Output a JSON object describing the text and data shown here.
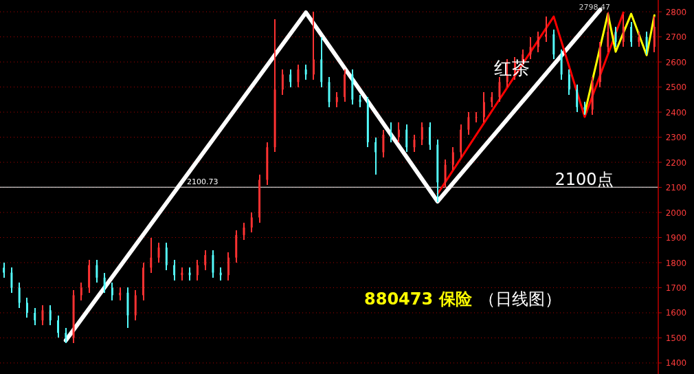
{
  "chart_data": {
    "type": "candlestick",
    "title": "880473 保险",
    "subtitle": "（日线图）",
    "categories": [
      null,
      null,
      null,
      null,
      null,
      null,
      null,
      null,
      null,
      null,
      null,
      null,
      null,
      null,
      null,
      null,
      null,
      null,
      null,
      null,
      null,
      null,
      null,
      null,
      null,
      null,
      null,
      null,
      null,
      null,
      null,
      null,
      null,
      null,
      null,
      null,
      null,
      null,
      null,
      null,
      null,
      null,
      null,
      null,
      null,
      null,
      null,
      null,
      null,
      null,
      null,
      null,
      null,
      null,
      null,
      null,
      null,
      null,
      null,
      null,
      null,
      null,
      null,
      null,
      null,
      null,
      null,
      null,
      null,
      null,
      null,
      null,
      null,
      null,
      null,
      null,
      null,
      null,
      null,
      null,
      null,
      null,
      null,
      null,
      null
    ],
    "ylim": [
      1356,
      2847
    ],
    "yticks": [
      1400,
      1500,
      1600,
      1700,
      1800,
      1900,
      2000,
      2100,
      2200,
      2300,
      2400,
      2500,
      2600,
      2700,
      2800
    ],
    "tick_labels": "y",
    "grid": "y",
    "ohlc": [
      [
        1780,
        1800,
        1740,
        1760
      ],
      [
        1760,
        1780,
        1680,
        1700
      ],
      [
        1700,
        1720,
        1620,
        1640
      ],
      [
        1640,
        1660,
        1580,
        1600
      ],
      [
        1600,
        1620,
        1550,
        1570
      ],
      [
        1570,
        1630,
        1550,
        1610
      ],
      [
        1610,
        1630,
        1550,
        1570
      ],
      [
        1570,
        1590,
        1500,
        1520
      ],
      [
        1520,
        1540,
        1480,
        1500
      ],
      [
        1500,
        1690,
        1480,
        1670
      ],
      [
        1670,
        1720,
        1650,
        1700
      ],
      [
        1700,
        1810,
        1680,
        1790
      ],
      [
        1790,
        1810,
        1720,
        1740
      ],
      [
        1740,
        1760,
        1680,
        1700
      ],
      [
        1700,
        1720,
        1650,
        1670
      ],
      [
        1670,
        1700,
        1650,
        1680
      ],
      [
        1680,
        1700,
        1540,
        1590
      ],
      [
        1590,
        1690,
        1570,
        1670
      ],
      [
        1670,
        1800,
        1650,
        1780
      ],
      [
        1780,
        1900,
        1760,
        1820
      ],
      [
        1820,
        1880,
        1800,
        1860
      ],
      [
        1860,
        1880,
        1770,
        1790
      ],
      [
        1790,
        1810,
        1730,
        1750
      ],
      [
        1750,
        1780,
        1730,
        1760
      ],
      [
        1760,
        1780,
        1730,
        1750
      ],
      [
        1750,
        1810,
        1730,
        1790
      ],
      [
        1790,
        1850,
        1770,
        1830
      ],
      [
        1830,
        1850,
        1740,
        1760
      ],
      [
        1760,
        1780,
        1730,
        1750
      ],
      [
        1750,
        1840,
        1730,
        1820
      ],
      [
        1820,
        1930,
        1800,
        1910
      ],
      [
        1910,
        1960,
        1890,
        1940
      ],
      [
        1940,
        2000,
        1920,
        1980
      ],
      [
        1980,
        2150,
        1960,
        2130
      ],
      [
        2130,
        2280,
        2110,
        2260
      ],
      [
        2260,
        2770,
        2240,
        2490
      ],
      [
        2490,
        2570,
        2470,
        2550
      ],
      [
        2550,
        2570,
        2500,
        2520
      ],
      [
        2520,
        2590,
        2500,
        2570
      ],
      [
        2570,
        2590,
        2530,
        2550
      ],
      [
        2550,
        2800,
        2530,
        2610
      ],
      [
        2610,
        2700,
        2500,
        2520
      ],
      [
        2520,
        2540,
        2420,
        2440
      ],
      [
        2440,
        2480,
        2420,
        2460
      ],
      [
        2460,
        2570,
        2440,
        2550
      ],
      [
        2550,
        2570,
        2430,
        2450
      ],
      [
        2450,
        2470,
        2420,
        2440
      ],
      [
        2440,
        2460,
        2260,
        2280
      ],
      [
        2280,
        2300,
        2150,
        2240
      ],
      [
        2240,
        2330,
        2220,
        2310
      ],
      [
        2310,
        2360,
        2280,
        2300
      ],
      [
        2300,
        2360,
        2280,
        2330
      ],
      [
        2330,
        2350,
        2240,
        2260
      ],
      [
        2260,
        2310,
        2240,
        2290
      ],
      [
        2290,
        2360,
        2270,
        2340
      ],
      [
        2340,
        2360,
        2250,
        2270
      ],
      [
        2270,
        2290,
        2040,
        2120
      ],
      [
        2120,
        2210,
        2100,
        2190
      ],
      [
        2190,
        2260,
        2170,
        2240
      ],
      [
        2240,
        2350,
        2220,
        2330
      ],
      [
        2330,
        2400,
        2310,
        2380
      ],
      [
        2380,
        2400,
        2360,
        2380
      ],
      [
        2380,
        2480,
        2360,
        2440
      ],
      [
        2440,
        2480,
        2420,
        2460
      ],
      [
        2460,
        2540,
        2440,
        2520
      ],
      [
        2520,
        2610,
        2500,
        2550
      ],
      [
        2550,
        2620,
        2530,
        2600
      ],
      [
        2600,
        2650,
        2580,
        2630
      ],
      [
        2630,
        2700,
        2610,
        2660
      ],
      [
        2660,
        2720,
        2640,
        2700
      ],
      [
        2700,
        2780,
        2680,
        2710
      ],
      [
        2710,
        2730,
        2610,
        2630
      ],
      [
        2630,
        2650,
        2530,
        2550
      ],
      [
        2550,
        2570,
        2470,
        2490
      ],
      [
        2490,
        2510,
        2400,
        2420
      ],
      [
        2420,
        2440,
        2390,
        2410
      ],
      [
        2410,
        2540,
        2390,
        2520
      ],
      [
        2520,
        2680,
        2500,
        2660
      ],
      [
        2660,
        2798.47,
        2640,
        2720
      ],
      [
        2720,
        2740,
        2660,
        2680
      ],
      [
        2680,
        2790,
        2660,
        2740
      ],
      [
        2740,
        2760,
        2660,
        2680
      ],
      [
        2680,
        2720,
        2660,
        2700
      ],
      [
        2700,
        2720,
        2630,
        2660
      ],
      [
        2660,
        2780,
        2640,
        2740
      ]
    ],
    "colors": [
      "#54fcfc",
      "#54fcfc",
      "#54fcfc",
      "#54fcfc",
      "#54fcfc",
      "#ff3232",
      "#54fcfc",
      "#54fcfc",
      "#54fcfc",
      "#ff3232",
      "#ff3232",
      "#ff3232",
      "#54fcfc",
      "#54fcfc",
      "#54fcfc",
      "#ff3232",
      "#54fcfc",
      "#ff3232",
      "#ff3232",
      "#ff3232",
      "#ff3232",
      "#54fcfc",
      "#54fcfc",
      "#ff3232",
      "#54fcfc",
      "#ff3232",
      "#ff3232",
      "#54fcfc",
      "#54fcfc",
      "#ff3232",
      "#ff3232",
      "#ff3232",
      "#ff3232",
      "#ff3232",
      "#ff3232",
      "#ff3232",
      "#ff3232",
      "#54fcfc",
      "#ff3232",
      "#54fcfc",
      "#ff3232",
      "#54fcfc",
      "#54fcfc",
      "#ff3232",
      "#ff3232",
      "#54fcfc",
      "#54fcfc",
      "#54fcfc",
      "#54fcfc",
      "#ff3232",
      "#54fcfc",
      "#ff3232",
      "#54fcfc",
      "#ff3232",
      "#ff3232",
      "#54fcfc",
      "#54fcfc",
      "#ff3232",
      "#ff3232",
      "#ff3232",
      "#ff3232",
      "#ff3232",
      "#ff3232",
      "#ff3232",
      "#ff3232",
      "#ff3232",
      "#ff3232",
      "#ff3232",
      "#ff3232",
      "#ff3232",
      "#ff3232",
      "#54fcfc",
      "#54fcfc",
      "#54fcfc",
      "#54fcfc",
      "#54fcfc",
      "#ff3232",
      "#ff3232",
      "#ff3232",
      "#54fcfc",
      "#ff3232",
      "#54fcfc",
      "#ff3232",
      "#54fcfc",
      "#ff3232"
    ],
    "series": [
      {
        "type": "line",
        "color": "#ffffff",
        "values": [
          null,
          null,
          null,
          null,
          null,
          null,
          null,
          null,
          1490,
          null,
          null,
          null,
          null,
          null,
          null,
          null,
          null,
          null,
          null,
          null,
          null,
          null,
          null,
          null,
          null,
          null,
          null,
          null,
          null,
          null,
          null,
          null,
          null,
          null,
          null,
          null,
          null,
          null,
          null,
          2797,
          null,
          null,
          null,
          null,
          null,
          null,
          null,
          null,
          null,
          null,
          null,
          null,
          null,
          null,
          null,
          null,
          2044,
          null,
          null,
          null,
          null,
          null,
          null,
          null,
          null,
          null,
          null,
          null,
          null,
          null,
          null,
          null,
          null,
          null,
          null,
          null,
          null,
          2808,
          null,
          null,
          null,
          null,
          null,
          null,
          null
        ]
      },
      {
        "type": "line",
        "color": "#ff0000",
        "values": [
          null,
          null,
          null,
          null,
          null,
          null,
          null,
          null,
          null,
          null,
          null,
          null,
          null,
          null,
          null,
          null,
          null,
          null,
          null,
          null,
          null,
          null,
          null,
          null,
          null,
          null,
          null,
          null,
          null,
          null,
          null,
          null,
          null,
          null,
          null,
          null,
          null,
          null,
          null,
          null,
          null,
          null,
          null,
          null,
          null,
          null,
          null,
          null,
          null,
          null,
          null,
          null,
          null,
          null,
          null,
          null,
          2074,
          null,
          null,
          null,
          null,
          null,
          null,
          null,
          null,
          null,
          null,
          null,
          null,
          null,
          null,
          2781,
          null,
          null,
          null,
          2381,
          null,
          null,
          null,
          null,
          2797,
          null,
          null,
          null,
          null
        ]
      },
      {
        "type": "line",
        "color": "#ffff00",
        "values": [
          null,
          null,
          null,
          null,
          null,
          null,
          null,
          null,
          null,
          null,
          null,
          null,
          null,
          null,
          null,
          null,
          null,
          null,
          null,
          null,
          null,
          null,
          null,
          null,
          null,
          null,
          null,
          null,
          null,
          null,
          null,
          null,
          null,
          null,
          null,
          null,
          null,
          null,
          null,
          null,
          null,
          null,
          null,
          null,
          null,
          null,
          null,
          null,
          null,
          null,
          null,
          null,
          null,
          null,
          null,
          null,
          null,
          null,
          null,
          null,
          null,
          null,
          null,
          null,
          null,
          null,
          null,
          null,
          null,
          null,
          null,
          null,
          null,
          null,
          null,
          2395,
          null,
          null,
          2792,
          2641,
          null,
          2792,
          null,
          2627,
          2786
        ]
      }
    ],
    "ref_lines": [
      {
        "axis": "y",
        "value": 2100.73,
        "label": "2100.73",
        "color": "#ffffff"
      }
    ],
    "annotations": [
      {
        "text": "2100点",
        "y": 2100
      },
      "红茶",
      {
        "text": "2798.47",
        "y": 2798.47
      }
    ]
  }
}
